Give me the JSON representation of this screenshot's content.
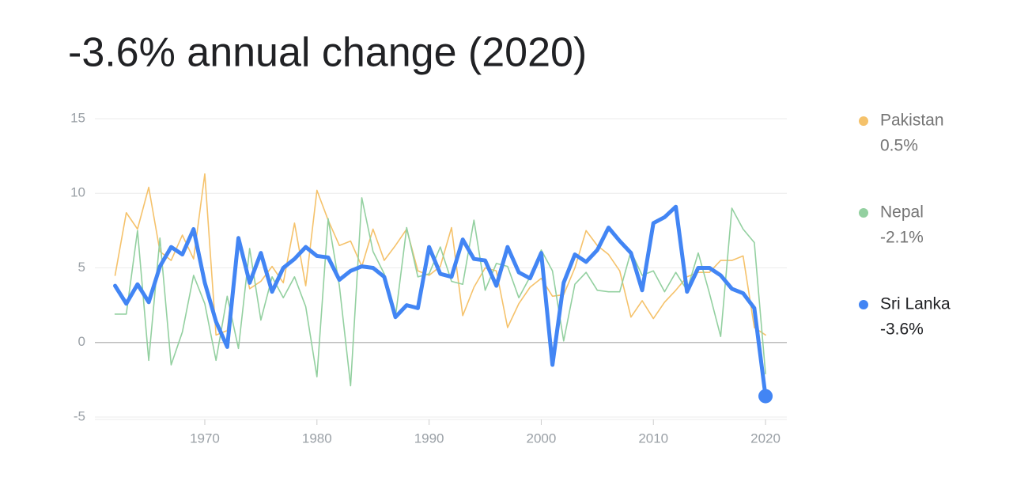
{
  "chart_data": {
    "type": "line",
    "title": "-3.6% annual change (2020)",
    "x": [
      1962,
      1963,
      1964,
      1965,
      1966,
      1967,
      1968,
      1969,
      1970,
      1971,
      1972,
      1973,
      1974,
      1975,
      1976,
      1977,
      1978,
      1979,
      1980,
      1981,
      1982,
      1983,
      1984,
      1985,
      1986,
      1987,
      1988,
      1989,
      1990,
      1991,
      1992,
      1993,
      1994,
      1995,
      1996,
      1997,
      1998,
      1999,
      2000,
      2001,
      2002,
      2003,
      2004,
      2005,
      2006,
      2007,
      2008,
      2009,
      2010,
      2011,
      2012,
      2013,
      2014,
      2015,
      2016,
      2017,
      2018,
      2019,
      2020
    ],
    "series": [
      {
        "name": "Pakistan",
        "legend_label": "0.5%",
        "color": "#f5c26b",
        "highlighted": false,
        "values": [
          4.5,
          8.7,
          7.6,
          10.4,
          6.1,
          5.5,
          7.2,
          5.6,
          11.3,
          0.5,
          0.8,
          7.1,
          3.6,
          4.1,
          5.1,
          4.0,
          8.0,
          3.8,
          10.2,
          8.2,
          6.5,
          6.8,
          5.1,
          7.6,
          5.5,
          6.5,
          7.6,
          4.8,
          4.5,
          5.1,
          7.7,
          1.8,
          3.7,
          5.0,
          4.8,
          1.0,
          2.6,
          3.7,
          4.3,
          3.1,
          3.2,
          5.0,
          7.5,
          6.5,
          5.9,
          4.8,
          1.7,
          2.8,
          1.6,
          2.7,
          3.5,
          4.4,
          4.7,
          4.7,
          5.5,
          5.5,
          5.8,
          1.0,
          0.5
        ]
      },
      {
        "name": "Nepal",
        "legend_label": "-2.1%",
        "color": "#93d0a0",
        "highlighted": false,
        "values": [
          1.9,
          1.9,
          7.5,
          -1.2,
          7.0,
          -1.5,
          0.7,
          4.5,
          2.6,
          -1.2,
          3.1,
          -0.4,
          6.3,
          1.5,
          4.4,
          3.0,
          4.4,
          2.4,
          -2.3,
          8.3,
          3.8,
          -2.9,
          9.7,
          6.1,
          4.6,
          1.7,
          7.7,
          4.4,
          4.6,
          6.4,
          4.1,
          3.9,
          8.2,
          3.5,
          5.3,
          5.1,
          3.0,
          4.4,
          6.2,
          4.8,
          0.1,
          3.9,
          4.7,
          3.5,
          3.4,
          3.4,
          6.1,
          4.5,
          4.8,
          3.4,
          4.7,
          3.5,
          6.0,
          3.3,
          0.4,
          9.0,
          7.6,
          6.7,
          -2.1
        ]
      },
      {
        "name": "Sri Lanka",
        "legend_label": "-3.6%",
        "color": "#4285f4",
        "highlighted": true,
        "values": [
          3.8,
          2.6,
          3.9,
          2.7,
          5.1,
          6.4,
          5.9,
          7.6,
          4.0,
          1.4,
          -0.3,
          7.0,
          4.0,
          6.0,
          3.4,
          5.0,
          5.6,
          6.4,
          5.8,
          5.7,
          4.2,
          4.8,
          5.1,
          5.0,
          4.4,
          1.7,
          2.5,
          2.3,
          6.4,
          4.6,
          4.4,
          6.9,
          5.6,
          5.5,
          3.8,
          6.4,
          4.7,
          4.3,
          6.0,
          -1.5,
          4.0,
          5.9,
          5.4,
          6.2,
          7.7,
          6.8,
          6.0,
          3.5,
          8.0,
          8.4,
          9.1,
          3.4,
          5.0,
          5.0,
          4.5,
          3.6,
          3.3,
          2.3,
          -3.6
        ]
      }
    ],
    "xlim": [
      1960.2,
      2021.9
    ],
    "xticks": [
      1970,
      1980,
      1990,
      2000,
      2010,
      2020
    ],
    "ylim": [
      -5,
      15
    ],
    "yticks": [
      -5,
      0,
      5,
      10,
      15
    ],
    "grid": true
  }
}
